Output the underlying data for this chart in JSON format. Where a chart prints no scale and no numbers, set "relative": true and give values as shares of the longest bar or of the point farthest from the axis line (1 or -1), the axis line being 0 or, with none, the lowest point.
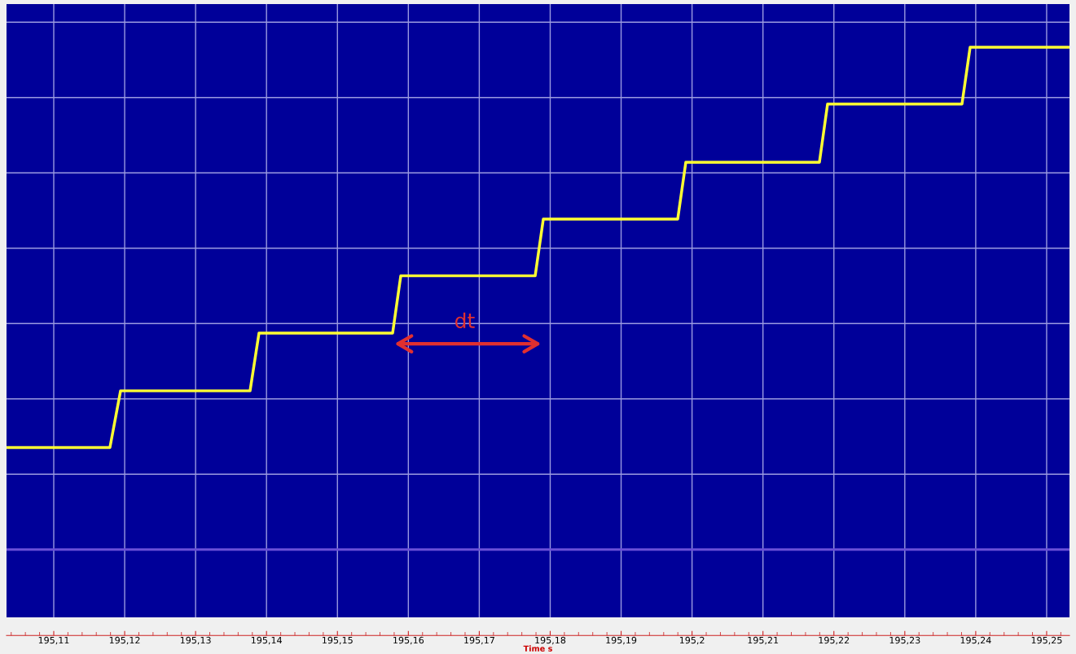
{
  "chart_data": {
    "type": "line",
    "relative": true,
    "xlabel": "Time s",
    "x": [
      195.10334,
      195.11792,
      195.11942,
      195.13768,
      195.13894,
      195.15778,
      195.15893,
      195.17788,
      195.17903,
      195.19798,
      195.19912,
      195.21796,
      195.21911,
      195.23806,
      195.23921,
      195.25322
    ],
    "series": [
      {
        "color": "#ffff33",
        "values": [
          0.203,
          0.203,
          0.316,
          0.316,
          0.431,
          0.431,
          0.545,
          0.545,
          0.658,
          0.658,
          0.771,
          0.771,
          0.887,
          0.887,
          1,
          1
        ]
      }
    ],
    "xlim": [
      195.10334,
      195.25322
    ],
    "xticks": [
      {
        "value": 195.11,
        "label": "195,11"
      },
      {
        "value": 195.12,
        "label": "195,12"
      },
      {
        "value": 195.13,
        "label": "195,13"
      },
      {
        "value": 195.14,
        "label": "195,14"
      },
      {
        "value": 195.15,
        "label": "195,15"
      },
      {
        "value": 195.16,
        "label": "195,16"
      },
      {
        "value": 195.17,
        "label": "195,17"
      },
      {
        "value": 195.18,
        "label": "195,18"
      },
      {
        "value": 195.19,
        "label": "195,19"
      },
      {
        "value": 195.2,
        "label": "195,2"
      },
      {
        "value": 195.21,
        "label": "195,21"
      },
      {
        "value": 195.22,
        "label": "195,22"
      },
      {
        "value": 195.23,
        "label": "195,23"
      },
      {
        "value": 195.24,
        "label": "195,24"
      },
      {
        "value": 195.25,
        "label": "195,25"
      }
    ],
    "ref_lines": [
      {
        "axis": "y",
        "value": 0,
        "color": "#6a50d8"
      }
    ],
    "annotations": [
      "dt"
    ],
    "grid": true,
    "tick_labels": "x",
    "marker": "none",
    "line_style": "solid"
  }
}
